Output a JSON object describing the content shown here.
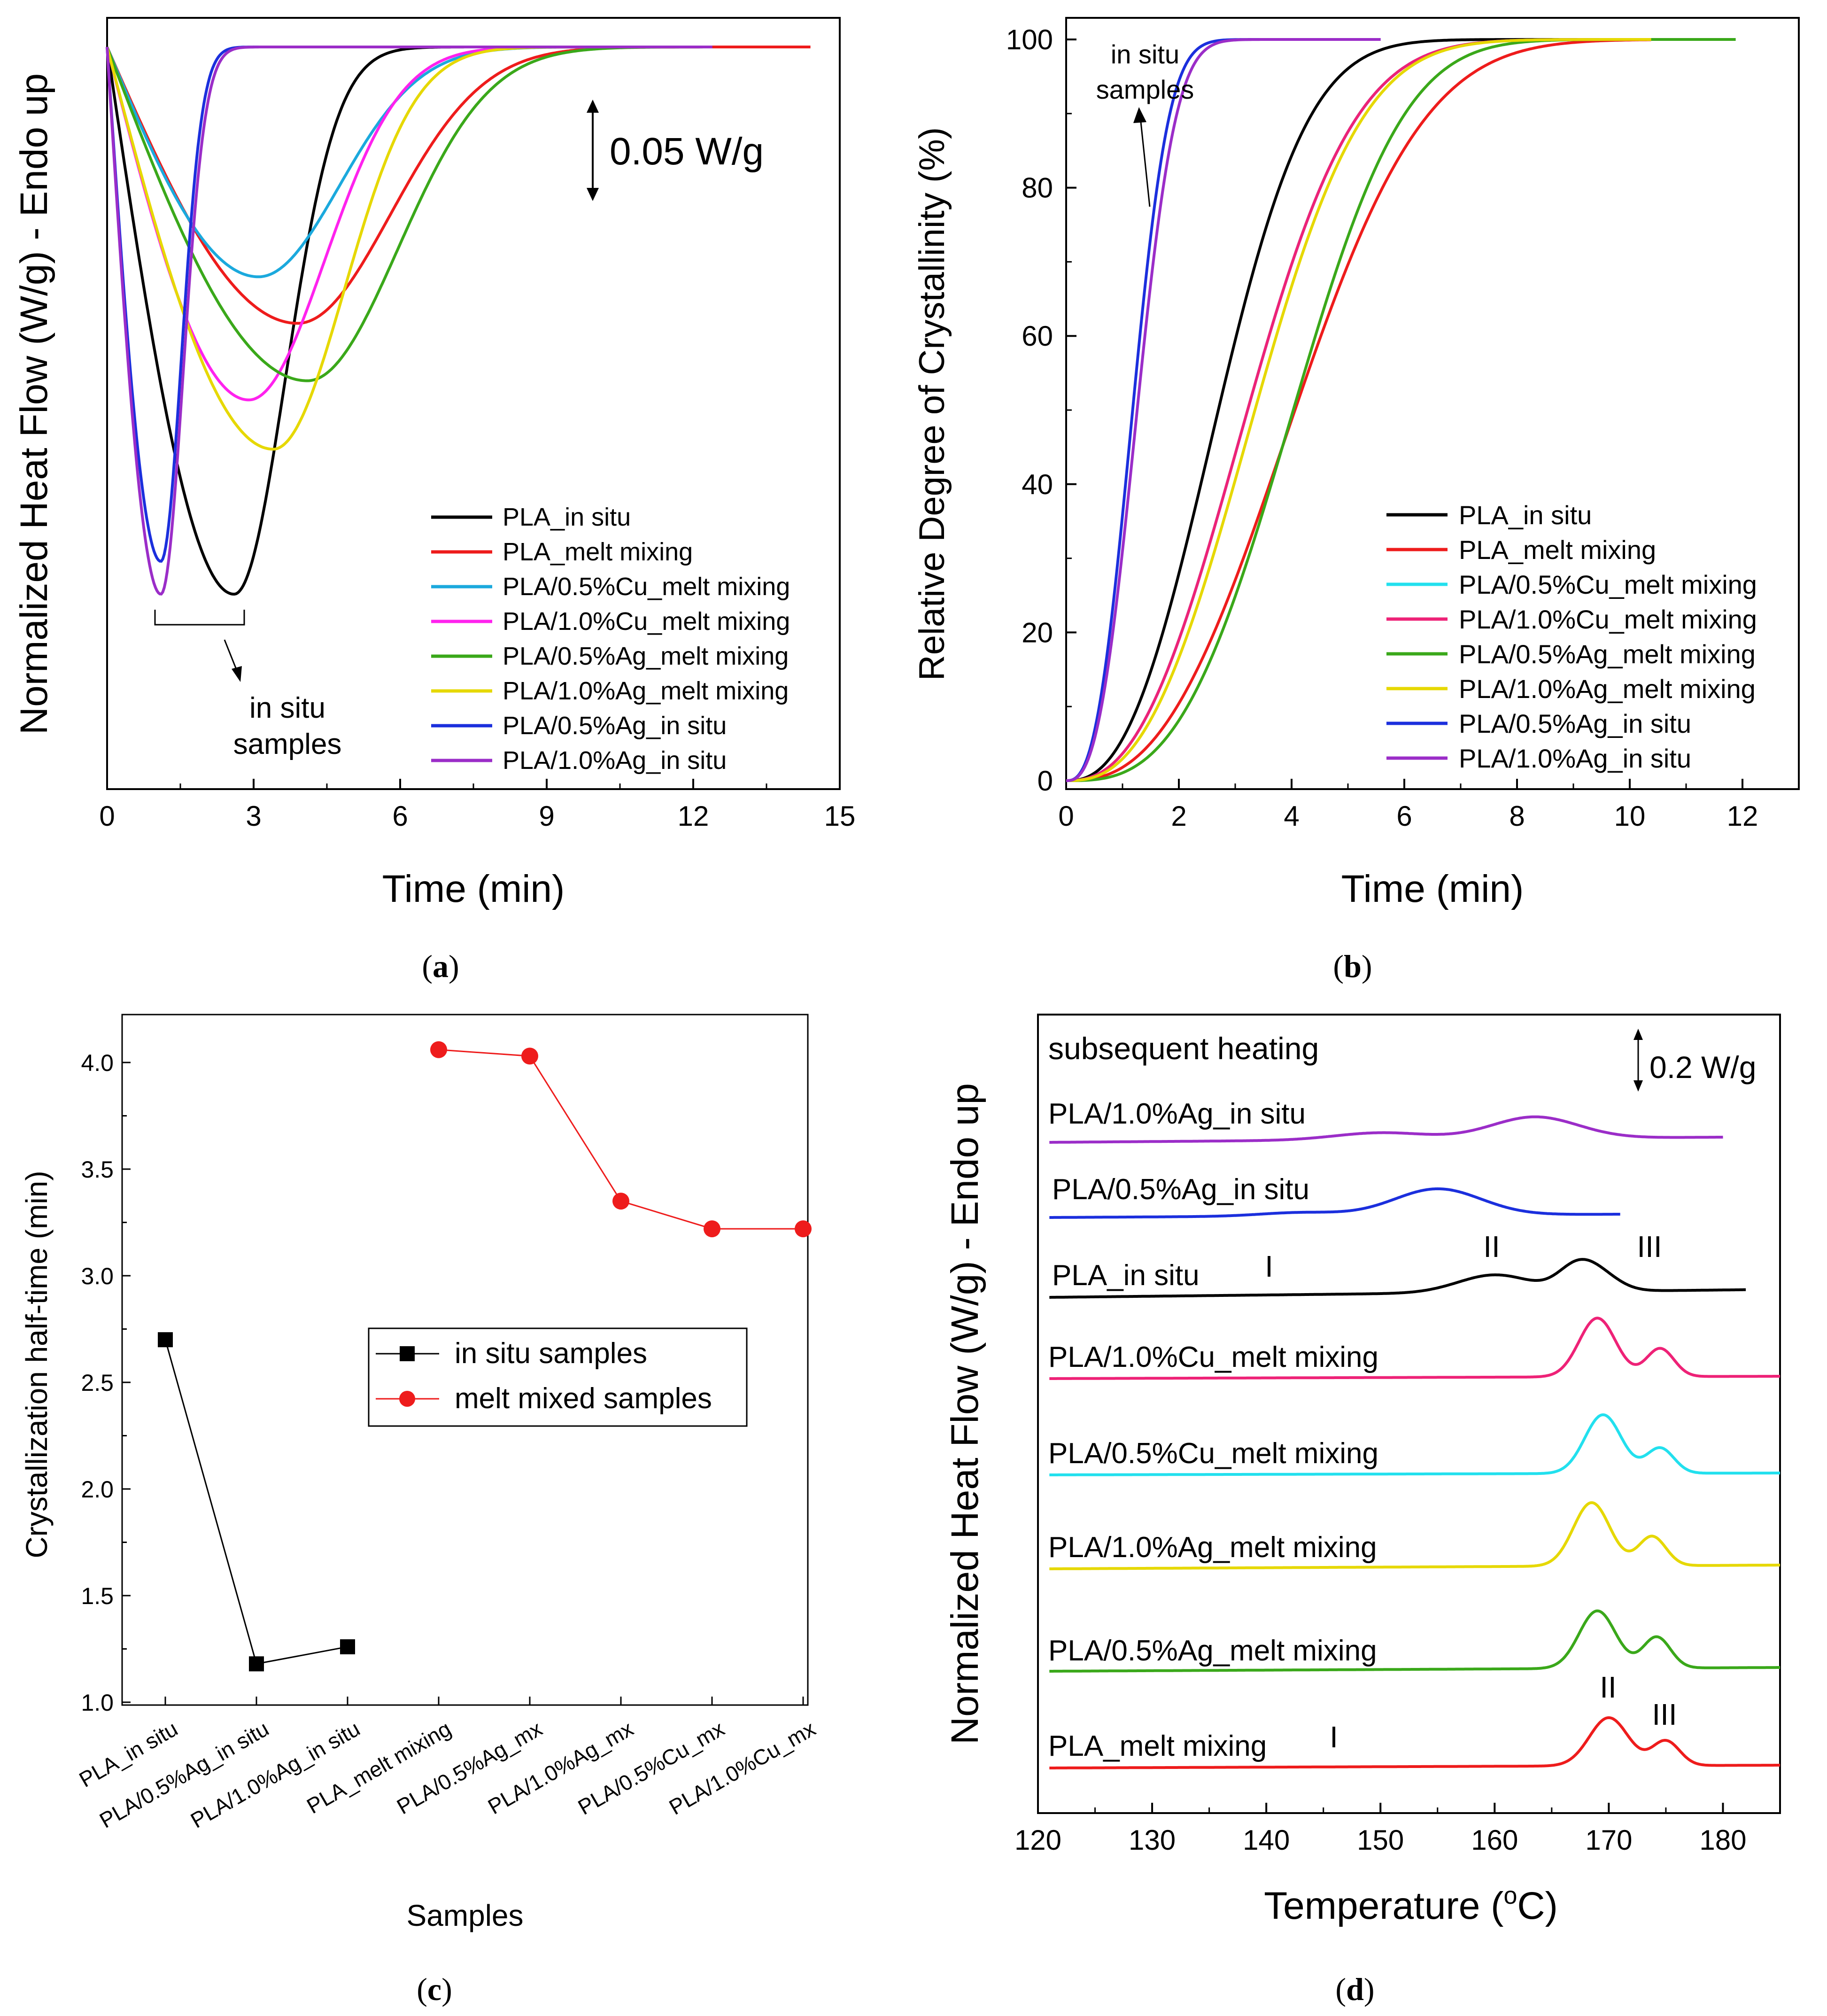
{
  "panel_a": {
    "caption": "a",
    "xlabel": "Time (min)",
    "ylabel": "Normalized Heat Flow (W/g) - Endo up",
    "xticks": [
      "0",
      "3",
      "6",
      "9",
      "12",
      "15"
    ],
    "xlim": [
      0,
      15
    ],
    "scale_label": "0.05 W/g",
    "annotation": [
      "in situ",
      "samples"
    ],
    "legend": [
      "PLA_in situ",
      "PLA_melt mixing",
      "PLA/0.5%Cu_melt mixing",
      "PLA/1.0%Cu_melt mixing",
      "PLA/0.5%Ag_melt mixing",
      "PLA/1.0%Ag_melt mixing",
      "PLA/0.5%Ag_in situ",
      "PLA/1.0%Ag_in situ"
    ]
  },
  "panel_b": {
    "caption": "b",
    "xlabel": "Time (min)",
    "ylabel": "Relative Degree of Crystallinity (%)",
    "xticks": [
      "0",
      "2",
      "4",
      "6",
      "8",
      "10",
      "12"
    ],
    "yticks": [
      "0",
      "20",
      "40",
      "60",
      "80",
      "100"
    ],
    "xlim": [
      0,
      13
    ],
    "ylim": [
      0,
      100
    ],
    "annotation": [
      "in situ",
      "samples"
    ],
    "legend": [
      "PLA_in situ",
      "PLA_melt mixing",
      "PLA/0.5%Cu_melt mixing",
      "PLA/1.0%Cu_melt mixing",
      "PLA/0.5%Ag_melt mixing",
      "PLA/1.0%Ag_melt mixing",
      "PLA/0.5%Ag_in situ",
      "PLA/1.0%Ag_in situ"
    ]
  },
  "panel_c": {
    "caption": "c",
    "xlabel": "Samples",
    "ylabel": "Crystallization half-time (min)",
    "yticks": [
      "1.0",
      "1.5",
      "2.0",
      "2.5",
      "3.0",
      "3.5",
      "4.0"
    ],
    "categories": [
      "PLA_in situ",
      "PLA/0.5%Ag_in situ",
      "PLA/1.0%Ag_in situ",
      "PLA_melt mixing",
      "PLA/0.5%Ag_mx",
      "PLA/1.0%Ag_mx",
      "PLA/0.5%Cu_mx",
      "PLA/1.0%Cu_mx"
    ],
    "legend": [
      "in situ samples",
      "melt mixed samples"
    ]
  },
  "panel_d": {
    "caption": "d",
    "xlabel": "Temperature (",
    "xlabel_sup": "o",
    "xlabel_end": "C)",
    "ylabel": "Normalized Heat Flow (W/g) - Endo up",
    "title": "subsequent heating",
    "scale_label": "0.2 W/g",
    "xticks": [
      "120",
      "130",
      "140",
      "150",
      "160",
      "170",
      "180"
    ],
    "xlim": [
      120,
      185
    ],
    "labels": [
      "PLA/1.0%Ag_in situ",
      "PLA/0.5%Ag_in situ",
      "PLA_in situ",
      "PLA/1.0%Cu_melt mixing",
      "PLA/0.5%Cu_melt mixing",
      "PLA/1.0%Ag_melt mixing",
      "PLA/0.5%Ag_melt mixing",
      "PLA_melt mixing"
    ],
    "peak_marks": [
      "I",
      "II",
      "III",
      "I",
      "II",
      "III"
    ]
  },
  "colors": {
    "black": "#000000",
    "red": "#ee1c1c",
    "cyan_a": "#1ba9dd",
    "cyan_b": "#22e0ee",
    "magenta": "#ff22ee",
    "pink": "#ee2277",
    "green": "#3aa81a",
    "yellow": "#e6d800",
    "blue": "#1b2fdd",
    "purple": "#9b2dc8"
  },
  "chart_data": [
    {
      "type": "line",
      "title": "(a)",
      "xlabel": "Time (min)",
      "ylabel": "Normalized Heat Flow (W/g) - Endo up",
      "xlim": [
        0,
        15
      ],
      "series": [
        {
          "name": "PLA_in situ",
          "color": "#000000",
          "tmin": 2.6,
          "depth": 1.0,
          "width": 1.05,
          "end": 7.5
        },
        {
          "name": "PLA_melt mixing",
          "color": "#ee1c1c",
          "tmin": 3.9,
          "depth": 0.505,
          "width": 1.9,
          "end": 14.4
        },
        {
          "name": "PLA/0.5%Cu_melt mixing",
          "color": "#1ba9dd",
          "tmin": 3.1,
          "depth": 0.42,
          "width": 1.65,
          "end": 12.4
        },
        {
          "name": "PLA/1.0%Cu_melt mixing",
          "color": "#ff22ee",
          "tmin": 2.9,
          "depth": 0.645,
          "width": 1.55,
          "end": 12.0
        },
        {
          "name": "PLA/0.5%Ag_melt mixing",
          "color": "#3aa81a",
          "tmin": 4.1,
          "depth": 0.61,
          "width": 1.85,
          "end": 12.4
        },
        {
          "name": "PLA/1.0%Ag_melt mixing",
          "color": "#e6d800",
          "tmin": 3.4,
          "depth": 0.735,
          "width": 1.45,
          "end": 12.0
        },
        {
          "name": "PLA/0.5%Ag_in situ",
          "color": "#1b2fdd",
          "tmin": 1.1,
          "depth": 0.94,
          "width": 0.42,
          "end": 12.4
        },
        {
          "name": "PLA/1.0%Ag_in situ",
          "color": "#9b2dc8",
          "tmin": 1.1,
          "depth": 1.0,
          "width": 0.45,
          "end": 12.4
        }
      ]
    },
    {
      "type": "line",
      "title": "(b)",
      "xlabel": "Time (min)",
      "ylabel": "Relative Degree of Crystallinity (%)",
      "xlim": [
        0,
        13
      ],
      "ylim": [
        0,
        100
      ],
      "series": [
        {
          "name": "PLA_in situ",
          "color": "#000000",
          "t_half": 2.7,
          "n": 2.5,
          "end": 10.4
        },
        {
          "name": "PLA_melt mixing",
          "color": "#ee1c1c",
          "t_half": 4.06,
          "n": 2.6,
          "end": 10.4
        },
        {
          "name": "PLA/0.5%Cu_melt mixing",
          "color": "#22e0ee",
          "t_half": 3.22,
          "n": 2.5,
          "end": 10.6
        },
        {
          "name": "PLA/1.0%Cu_melt mixing",
          "color": "#ee2277",
          "t_half": 3.22,
          "n": 2.5,
          "end": 10.4
        },
        {
          "name": "PLA/0.5%Ag_melt mixing",
          "color": "#3aa81a",
          "t_half": 4.03,
          "n": 3.0,
          "end": 11.9
        },
        {
          "name": "PLA/1.0%Ag_melt mixing",
          "color": "#e6d800",
          "t_half": 3.35,
          "n": 2.6,
          "end": 10.4
        },
        {
          "name": "PLA/0.5%Ag_in situ",
          "color": "#1b2fdd",
          "t_half": 1.18,
          "n": 2.7,
          "end": 5.6
        },
        {
          "name": "PLA/1.0%Ag_in situ",
          "color": "#9b2dc8",
          "t_half": 1.26,
          "n": 2.7,
          "end": 5.6
        }
      ]
    },
    {
      "type": "scatter",
      "title": "(c)",
      "xlabel": "Samples",
      "ylabel": "Crystallization half-time (min)",
      "ylim": [
        1.0,
        4.25
      ],
      "categories": [
        "PLA_in situ",
        "PLA/0.5%Ag_in situ",
        "PLA/1.0%Ag_in situ",
        "PLA_melt mixing",
        "PLA/0.5%Ag_mx",
        "PLA/1.0%Ag_mx",
        "PLA/0.5%Cu_mx",
        "PLA/1.0%Cu_mx"
      ],
      "series": [
        {
          "name": "in situ samples",
          "marker": "square",
          "color": "#000000",
          "values": [
            2.7,
            1.18,
            1.26,
            null,
            null,
            null,
            null,
            null
          ]
        },
        {
          "name": "melt mixed samples",
          "marker": "circle",
          "color": "#ee1c1c",
          "values": [
            null,
            null,
            null,
            4.06,
            4.03,
            3.35,
            3.22,
            3.22
          ]
        }
      ]
    },
    {
      "type": "line",
      "title": "(d)",
      "xlabel": "Temperature (oC)",
      "ylabel": "Normalized Heat Flow (W/g) - Endo up",
      "xlim": [
        120,
        185
      ],
      "series": [
        {
          "name": "PLA/1.0%Ag_in situ",
          "color": "#9b2dc8",
          "xmax": 180,
          "peaks": [
            [
              150,
              0.12,
              4
            ],
            [
              163.5,
              0.37,
              3.8
            ]
          ]
        },
        {
          "name": "PLA/0.5%Ag_in situ",
          "color": "#1b2fdd",
          "xmax": 171,
          "peaks": [
            [
              143,
              0.06,
              3.5
            ],
            [
              155,
              0.45,
              3.8
            ]
          ]
        },
        {
          "name": "PLA_in situ",
          "color": "#000000",
          "xmax": 182,
          "peaks": [
            [
              160,
              0.3,
              3.2
            ],
            [
              167,
              0.33,
              1.6
            ],
            [
              169,
              0.3,
              1.8
            ]
          ]
        },
        {
          "name": "PLA/1.0%Cu_melt mixing",
          "color": "#ee2277",
          "xmax": 185,
          "peaks": [
            [
              169,
              1.0,
              1.6
            ],
            [
              174.5,
              0.48,
              1.2
            ]
          ]
        },
        {
          "name": "PLA/0.5%Cu_melt mixing",
          "color": "#22e0ee",
          "xmax": 185,
          "peaks": [
            [
              169.5,
              1.0,
              1.6
            ],
            [
              174.5,
              0.43,
              1.2
            ]
          ]
        },
        {
          "name": "PLA/1.0%Ag_melt mixing",
          "color": "#e6d800",
          "xmax": 185,
          "peaks": [
            [
              168.5,
              1.08,
              1.6
            ],
            [
              173.8,
              0.5,
              1.2
            ]
          ]
        },
        {
          "name": "PLA/0.5%Ag_melt mixing",
          "color": "#3aa81a",
          "xmax": 185,
          "peaks": [
            [
              169,
              0.98,
              1.6
            ],
            [
              174.2,
              0.53,
              1.2
            ]
          ]
        },
        {
          "name": "PLA_melt mixing",
          "color": "#ee1c1c",
          "xmax": 185,
          "peaks": [
            [
              170,
              0.82,
              1.7
            ],
            [
              175,
              0.42,
              1.2
            ]
          ]
        }
      ]
    }
  ]
}
